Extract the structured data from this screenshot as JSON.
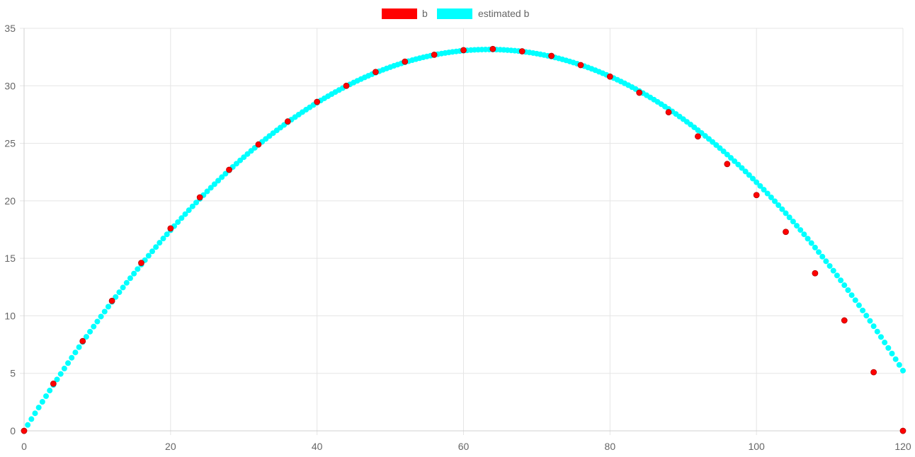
{
  "chart_data": {
    "type": "scatter",
    "title": "",
    "xlabel": "",
    "ylabel": "",
    "xlim": [
      0,
      120
    ],
    "ylim": [
      0,
      35
    ],
    "x_ticks": [
      "0",
      "20",
      "40",
      "60",
      "80",
      "100",
      "120"
    ],
    "y_ticks": [
      "0",
      "5",
      "10",
      "15",
      "20",
      "25",
      "30",
      "35"
    ],
    "grid": true,
    "legend_position": "top-center",
    "series": [
      {
        "name": "b",
        "color": "#ff0000",
        "x": [
          0,
          4,
          8,
          12,
          16,
          20,
          24,
          28,
          32,
          36,
          40,
          44,
          48,
          52,
          56,
          60,
          64,
          68,
          72,
          76,
          80,
          84,
          88,
          92,
          96,
          100,
          104,
          108,
          112,
          116,
          120
        ],
        "y": [
          0,
          4.1,
          7.8,
          11.3,
          14.6,
          17.6,
          20.3,
          22.7,
          24.9,
          26.9,
          28.6,
          30.0,
          31.2,
          32.1,
          32.7,
          33.1,
          33.2,
          33.0,
          32.6,
          31.8,
          30.8,
          29.4,
          27.7,
          25.6,
          23.2,
          20.5,
          17.3,
          13.7,
          9.6,
          5.1,
          0
        ]
      },
      {
        "name": "estimated b",
        "color": "#00ffff",
        "x_start": 0,
        "x_end": 120,
        "x_step": 0.5,
        "curve": "y = 33.15 * (1 - ((x - 62.5)/62.5)^2) * (1 + 0.0005*(x-62.5))"
      }
    ]
  }
}
